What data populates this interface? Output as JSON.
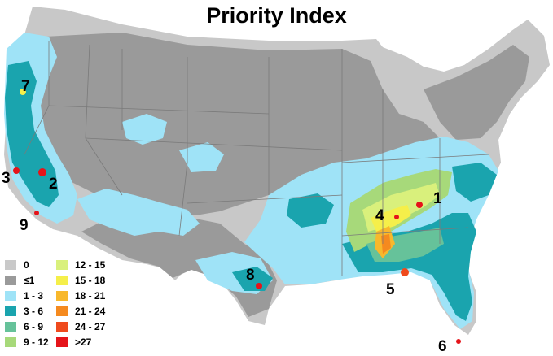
{
  "title": "Priority Index",
  "colors": {
    "background": "#ffffff",
    "zero": "#c8c8c8",
    "le1": "#9a9a9a",
    "state_border": "#7a7a7a"
  },
  "legend": [
    {
      "label": "0",
      "color": "#c9c9c9"
    },
    {
      "label": "≤1",
      "color": "#9a9a9a"
    },
    {
      "label": "1 - 3",
      "color": "#9fe3f7"
    },
    {
      "label": "3 - 6",
      "color": "#1aa4ae"
    },
    {
      "label": "6 - 9",
      "color": "#66c29a"
    },
    {
      "label": "9 - 12",
      "color": "#a7d97a"
    },
    {
      "label": "12 - 15",
      "color": "#d9f07c"
    },
    {
      "label": "15 - 18",
      "color": "#f5ef4a"
    },
    {
      "label": "18 - 21",
      "color": "#f8b82c"
    },
    {
      "label": "21 - 24",
      "color": "#f58a1f"
    },
    {
      "label": "24 - 27",
      "color": "#ef4a1d"
    },
    {
      "label": ">27",
      "color": "#e5141a"
    }
  ],
  "region_labels": [
    "1",
    "2",
    "3",
    "4",
    "5",
    "6",
    "7",
    "8",
    "9"
  ]
}
